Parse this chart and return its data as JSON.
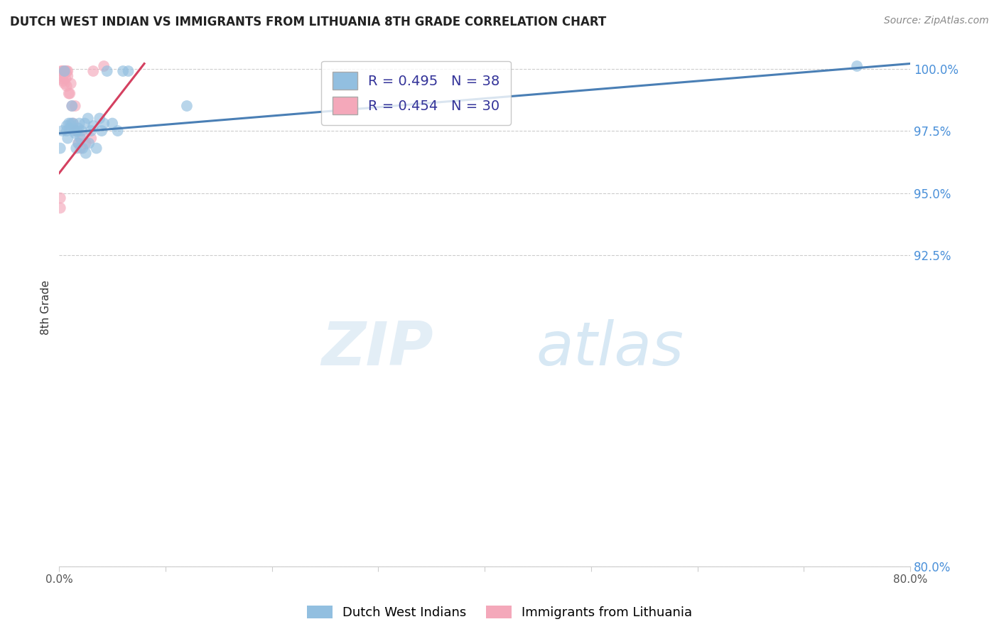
{
  "title": "DUTCH WEST INDIAN VS IMMIGRANTS FROM LITHUANIA 8TH GRADE CORRELATION CHART",
  "source": "Source: ZipAtlas.com",
  "ylabel": "8th Grade",
  "ytick_labels": [
    "80.0%",
    "92.5%",
    "95.0%",
    "97.5%",
    "100.0%"
  ],
  "ytick_values": [
    0.8,
    0.925,
    0.95,
    0.975,
    1.0
  ],
  "xlim": [
    0.0,
    0.8
  ],
  "ylim": [
    0.8,
    1.008
  ],
  "blue_R": 0.495,
  "blue_N": 38,
  "pink_R": 0.454,
  "pink_N": 30,
  "blue_color": "#92bfe0",
  "pink_color": "#f4a8ba",
  "blue_line_color": "#4a7fb5",
  "pink_line_color": "#d44060",
  "legend_label_blue": "Dutch West Indians",
  "legend_label_pink": "Immigrants from Lithuania",
  "blue_scatter_x": [
    0.001,
    0.003,
    0.005,
    0.007,
    0.007,
    0.008,
    0.009,
    0.01,
    0.011,
    0.012,
    0.013,
    0.014,
    0.015,
    0.016,
    0.017,
    0.018,
    0.018,
    0.019,
    0.02,
    0.021,
    0.022,
    0.024,
    0.025,
    0.027,
    0.028,
    0.03,
    0.032,
    0.035,
    0.038,
    0.04,
    0.042,
    0.045,
    0.05,
    0.055,
    0.06,
    0.065,
    0.12,
    0.75
  ],
  "blue_scatter_y": [
    0.968,
    0.975,
    0.999,
    0.975,
    0.977,
    0.972,
    0.978,
    0.976,
    0.978,
    0.985,
    0.978,
    0.975,
    0.974,
    0.968,
    0.975,
    0.976,
    0.97,
    0.978,
    0.972,
    0.975,
    0.968,
    0.978,
    0.966,
    0.98,
    0.97,
    0.975,
    0.977,
    0.968,
    0.98,
    0.975,
    0.978,
    0.999,
    0.978,
    0.975,
    0.999,
    0.999,
    0.985,
    1.001
  ],
  "pink_scatter_x": [
    0.001,
    0.001,
    0.002,
    0.002,
    0.003,
    0.003,
    0.004,
    0.004,
    0.005,
    0.005,
    0.006,
    0.006,
    0.007,
    0.007,
    0.008,
    0.008,
    0.009,
    0.01,
    0.011,
    0.012,
    0.013,
    0.015,
    0.016,
    0.018,
    0.02,
    0.022,
    0.025,
    0.03,
    0.032,
    0.042
  ],
  "pink_scatter_y": [
    0.944,
    0.948,
    0.999,
    0.997,
    0.999,
    0.996,
    0.995,
    0.999,
    0.998,
    0.994,
    0.996,
    0.999,
    0.993,
    0.999,
    0.997,
    0.999,
    0.99,
    0.99,
    0.994,
    0.985,
    0.978,
    0.985,
    0.975,
    0.97,
    0.968,
    0.973,
    0.97,
    0.972,
    0.999,
    1.001
  ],
  "marker_size": 130,
  "blue_line_x0": 0.0,
  "blue_line_y0": 0.974,
  "blue_line_x1": 0.8,
  "blue_line_y1": 1.002,
  "pink_line_x0": 0.0,
  "pink_line_y0": 0.958,
  "pink_line_x1": 0.08,
  "pink_line_y1": 1.002
}
